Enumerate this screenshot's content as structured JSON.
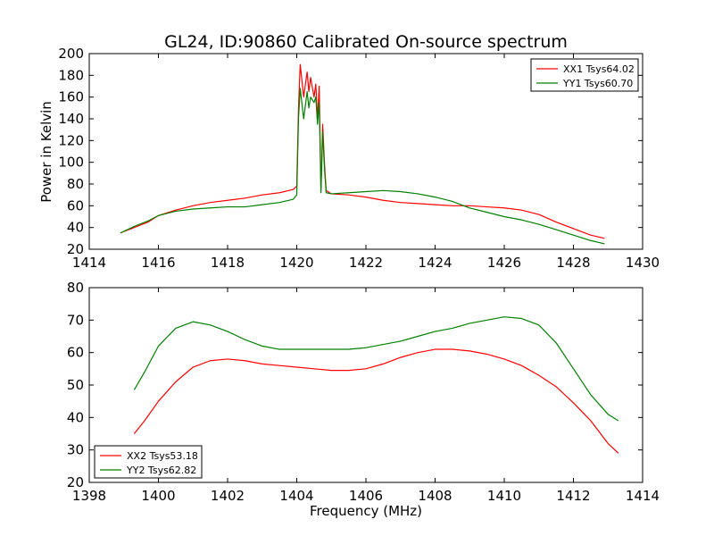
{
  "figure": {
    "title": "GL24, ID:90860 Calibrated On-source spectrum",
    "ylabel": "Power in Kelvin",
    "xlabel": "Frequency (MHz)"
  },
  "chart_data": [
    {
      "type": "line",
      "title": "GL24, ID:90860 Calibrated On-source spectrum",
      "xlabel": "",
      "ylabel": "Power in Kelvin",
      "xlim": [
        1414,
        1430
      ],
      "ylim": [
        20,
        200
      ],
      "xticks": [
        1414,
        1416,
        1418,
        1420,
        1422,
        1424,
        1426,
        1428,
        1430
      ],
      "yticks": [
        20,
        40,
        60,
        80,
        100,
        120,
        140,
        160,
        180,
        200
      ],
      "grid": false,
      "legend_position": "top-right",
      "series": [
        {
          "name": "XX1 Tsys64.02",
          "color": "#ff0000",
          "x": [
            1414.9,
            1415.3,
            1415.7,
            1416.0,
            1416.5,
            1417.0,
            1417.5,
            1418.0,
            1418.5,
            1419.0,
            1419.5,
            1419.9,
            1420.0,
            1420.05,
            1420.1,
            1420.2,
            1420.3,
            1420.35,
            1420.4,
            1420.5,
            1420.55,
            1420.6,
            1420.65,
            1420.7,
            1420.75,
            1420.8,
            1420.85,
            1421.0,
            1421.5,
            1422.0,
            1422.5,
            1423.0,
            1423.5,
            1424.0,
            1424.5,
            1425.0,
            1425.5,
            1426.0,
            1426.5,
            1427.0,
            1427.5,
            1428.0,
            1428.5,
            1428.9
          ],
          "y": [
            35,
            40,
            45,
            51,
            56,
            60,
            63,
            65,
            67,
            70,
            72,
            75,
            78,
            150,
            190,
            160,
            183,
            165,
            178,
            160,
            172,
            140,
            170,
            75,
            135,
            100,
            74,
            71,
            70,
            68,
            65,
            63,
            62,
            61,
            60,
            60,
            59,
            58,
            56,
            52,
            45,
            39,
            33,
            30
          ]
        },
        {
          "name": "YY1 Tsys60.70",
          "color": "#008000",
          "x": [
            1414.9,
            1415.3,
            1415.7,
            1416.0,
            1416.5,
            1417.0,
            1417.5,
            1418.0,
            1418.5,
            1419.0,
            1419.5,
            1419.9,
            1420.0,
            1420.05,
            1420.1,
            1420.2,
            1420.3,
            1420.35,
            1420.4,
            1420.5,
            1420.55,
            1420.6,
            1420.65,
            1420.7,
            1420.75,
            1420.8,
            1420.85,
            1421.0,
            1421.5,
            1422.0,
            1422.5,
            1423.0,
            1423.5,
            1424.0,
            1424.5,
            1425.0,
            1425.5,
            1426.0,
            1426.5,
            1427.0,
            1427.5,
            1428.0,
            1428.5,
            1428.9
          ],
          "y": [
            35,
            41,
            46,
            51,
            55,
            57,
            58,
            59,
            59,
            61,
            63,
            66,
            70,
            140,
            168,
            140,
            165,
            150,
            160,
            155,
            160,
            135,
            155,
            72,
            128,
            95,
            72,
            71,
            72,
            73,
            74,
            73,
            71,
            68,
            64,
            58,
            54,
            50,
            47,
            43,
            38,
            33,
            28,
            25
          ]
        }
      ]
    },
    {
      "type": "line",
      "title": "",
      "xlabel": "Frequency (MHz)",
      "ylabel": "",
      "xlim": [
        1398,
        1414
      ],
      "ylim": [
        20,
        80
      ],
      "xticks": [
        1398,
        1400,
        1402,
        1404,
        1406,
        1408,
        1410,
        1412,
        1414
      ],
      "yticks": [
        20,
        30,
        40,
        50,
        60,
        70,
        80
      ],
      "grid": false,
      "legend_position": "bottom-left",
      "series": [
        {
          "name": "XX2 Tsys53.18",
          "color": "#ff0000",
          "x": [
            1399.3,
            1399.6,
            1400.0,
            1400.5,
            1401.0,
            1401.5,
            1402.0,
            1402.5,
            1403.0,
            1403.5,
            1404.0,
            1404.5,
            1405.0,
            1405.5,
            1406.0,
            1406.5,
            1407.0,
            1407.5,
            1408.0,
            1408.5,
            1409.0,
            1409.5,
            1410.0,
            1410.5,
            1411.0,
            1411.5,
            1412.0,
            1412.5,
            1413.0,
            1413.3
          ],
          "y": [
            35,
            39,
            45,
            51,
            55.5,
            57.5,
            58,
            57.5,
            56.5,
            56,
            55.5,
            55,
            54.5,
            54.5,
            55,
            56.5,
            58.5,
            60,
            61,
            61,
            60.5,
            59.5,
            58,
            56,
            53,
            49.5,
            44.5,
            39,
            32,
            29
          ]
        },
        {
          "name": "YY2 Tsys62.82",
          "color": "#008000",
          "x": [
            1399.3,
            1399.6,
            1400.0,
            1400.5,
            1401.0,
            1401.5,
            1402.0,
            1402.5,
            1403.0,
            1403.5,
            1404.0,
            1404.5,
            1405.0,
            1405.5,
            1406.0,
            1406.5,
            1407.0,
            1407.5,
            1408.0,
            1408.5,
            1409.0,
            1409.5,
            1410.0,
            1410.5,
            1411.0,
            1411.5,
            1412.0,
            1412.5,
            1413.0,
            1413.3
          ],
          "y": [
            48.5,
            54,
            62,
            67.5,
            69.5,
            68.5,
            66.5,
            64,
            62,
            61,
            61,
            61,
            61,
            61,
            61.5,
            62.5,
            63.5,
            65,
            66.5,
            67.5,
            69,
            70,
            71,
            70.5,
            68.5,
            63,
            55,
            47,
            41,
            39
          ]
        }
      ]
    }
  ]
}
